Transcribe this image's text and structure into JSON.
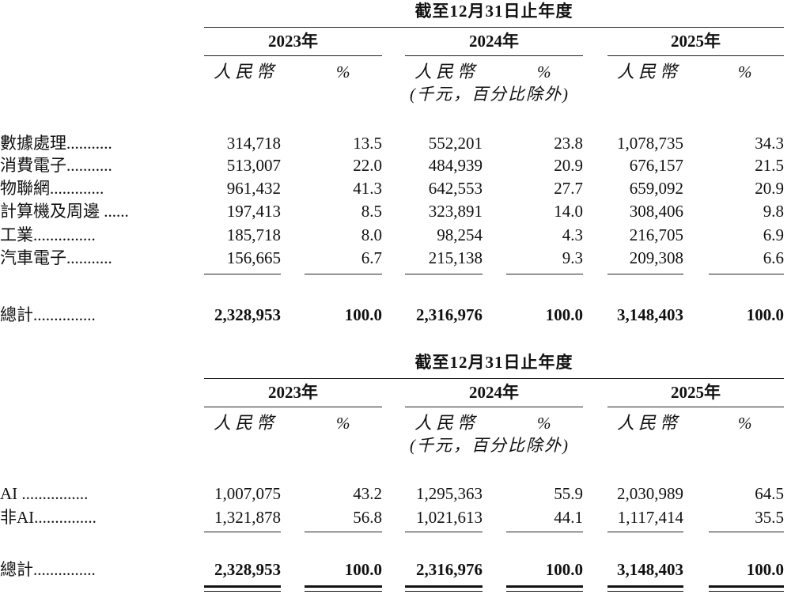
{
  "tables": [
    {
      "period_header": "截至12月31日止年度",
      "years": [
        "2023年",
        "2024年",
        "2025年"
      ],
      "currency_label": "人民幣",
      "percent_label": "%",
      "unit_note": "(千元，百分比除外)",
      "rows": [
        {
          "label": "數據處理...........",
          "values": [
            "314,718",
            "13.5",
            "552,201",
            "23.8",
            "1,078,735",
            "34.3"
          ]
        },
        {
          "label": "消費電子...........",
          "values": [
            "513,007",
            "22.0",
            "484,939",
            "20.9",
            "676,157",
            "21.5"
          ]
        },
        {
          "label": "物聯網.............",
          "values": [
            "961,432",
            "41.3",
            "642,553",
            "27.7",
            "659,092",
            "20.9"
          ]
        },
        {
          "label": "計算機及周邊 ......",
          "values": [
            "197,413",
            "8.5",
            "323,891",
            "14.0",
            "308,406",
            "9.8"
          ]
        },
        {
          "label": "工業...............",
          "values": [
            "185,718",
            "8.0",
            "98,254",
            "4.3",
            "216,705",
            "6.9"
          ]
        },
        {
          "label": "汽車電子...........",
          "values": [
            "156,665",
            "6.7",
            "215,138",
            "9.3",
            "209,308",
            "6.6"
          ]
        }
      ],
      "total": {
        "label": "總計...............",
        "values": [
          "2,328,953",
          "100.0",
          "2,316,976",
          "100.0",
          "3,148,403",
          "100.0"
        ]
      }
    },
    {
      "period_header": "截至12月31日止年度",
      "years": [
        "2023年",
        "2024年",
        "2025年"
      ],
      "currency_label": "人民幣",
      "percent_label": "%",
      "unit_note": "(千元，百分比除外)",
      "rows": [
        {
          "label": "AI ................",
          "values": [
            "1,007,075",
            "43.2",
            "1,295,363",
            "55.9",
            "2,030,989",
            "64.5"
          ]
        },
        {
          "label": "非AI...............",
          "values": [
            "1,321,878",
            "56.8",
            "1,021,613",
            "44.1",
            "1,117,414",
            "35.5"
          ]
        }
      ],
      "total": {
        "label": "總計...............",
        "values": [
          "2,328,953",
          "100.0",
          "2,316,976",
          "100.0",
          "3,148,403",
          "100.0"
        ]
      }
    }
  ]
}
